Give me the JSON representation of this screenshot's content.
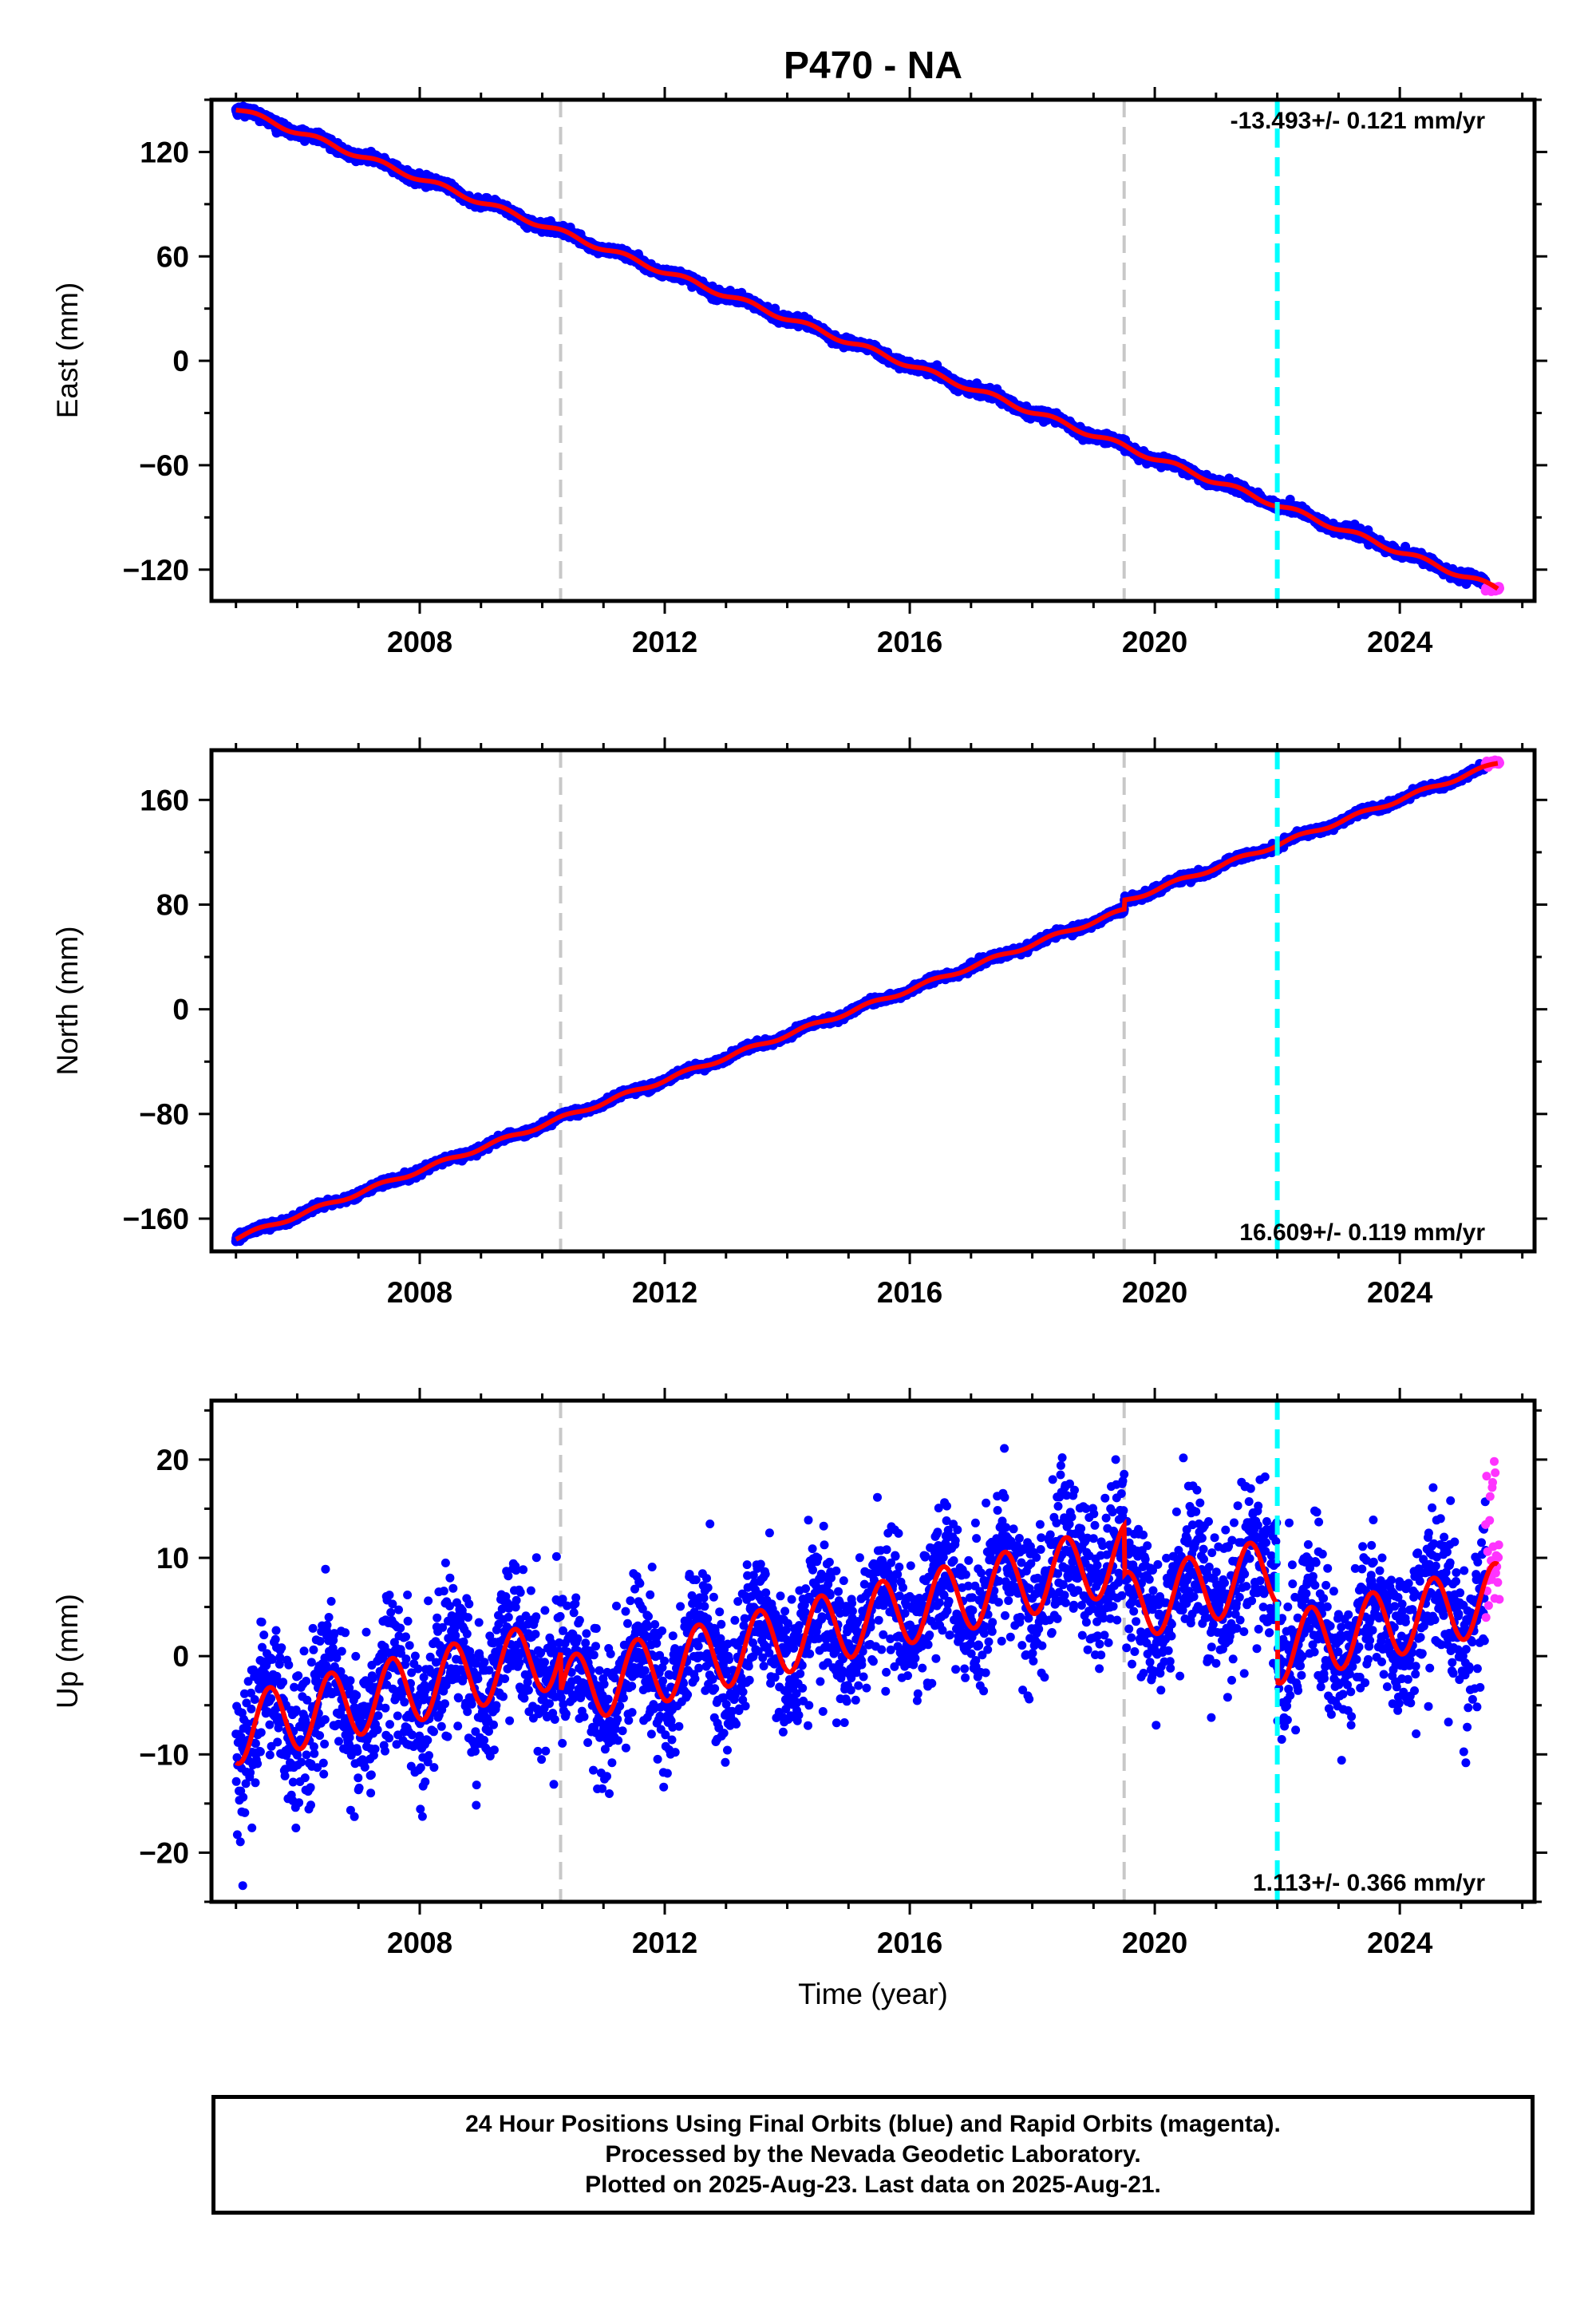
{
  "title": "P470 - NA",
  "colors": {
    "final_orbits": "#0000ff",
    "rapid_orbits": "#ff33ff",
    "model": "#ff0000",
    "equipment_change": "#c8c8c8",
    "earthquake": "#00ffff"
  },
  "footer": {
    "line1": "24 Hour Positions Using Final Orbits (blue) and Rapid Orbits (magenta).",
    "line2": "Processed by the Nevada Geodetic Laboratory.",
    "line3": "Plotted on 2025-Aug-23. Last data on 2025-Aug-21."
  },
  "chart_data": [
    {
      "type": "scatter",
      "component": "east",
      "ylabel": "East (mm)",
      "xlabel": "",
      "xlim": [
        2004.6,
        2026.2
      ],
      "ylim": [
        -138,
        150
      ],
      "xticks": [
        2008,
        2012,
        2016,
        2020,
        2024
      ],
      "yticks": [
        -120,
        -60,
        0,
        60,
        120
      ],
      "rate_label": "-13.493+/- 0.121 mm/yr",
      "rate_position": "top-right",
      "start": [
        2005.0,
        145
      ],
      "end": [
        2025.6,
        -131
      ],
      "rate_mm_per_yr": -13.493,
      "seasonal_amplitude_mm": 1.5,
      "equipment_changes": [
        2010.3,
        2019.5
      ],
      "earthquakes": [
        2022.0
      ],
      "offsets": [],
      "rapid_orbits_x": [
        2025.4,
        2025.63
      ]
    },
    {
      "type": "scatter",
      "component": "north",
      "ylabel": "North (mm)",
      "xlabel": "",
      "xlim": [
        2004.6,
        2026.2
      ],
      "ylim": [
        -185,
        198
      ],
      "xticks": [
        2008,
        2012,
        2016,
        2020,
        2024
      ],
      "yticks": [
        -160,
        -80,
        0,
        80,
        160
      ],
      "rate_label": "16.609+/- 0.119 mm/yr",
      "rate_position": "bottom-right",
      "start": [
        2005.0,
        -175
      ],
      "end": [
        2025.6,
        188
      ],
      "rate_mm_per_yr": 16.609,
      "seasonal_amplitude_mm": 1.5,
      "equipment_changes": [
        2010.3,
        2019.5
      ],
      "earthquakes": [
        2022.0
      ],
      "offsets": [
        [
          2019.5,
          7
        ]
      ],
      "rapid_orbits_x": [
        2025.4,
        2025.63
      ]
    },
    {
      "type": "scatter",
      "component": "up",
      "ylabel": "Up (mm)",
      "xlabel": "Time (year)",
      "xlim": [
        2004.6,
        2026.2
      ],
      "ylim": [
        -25,
        26
      ],
      "xticks": [
        2008,
        2012,
        2016,
        2020,
        2024
      ],
      "yticks": [
        -20,
        -10,
        0,
        10,
        20
      ],
      "rate_label": "1.113+/- 0.366 mm/yr",
      "rate_position": "bottom-right",
      "start": [
        2005.0,
        -7.5
      ],
      "end": [
        2025.6,
        6
      ],
      "rate_mm_per_yr": 1.113,
      "seasonal_amplitude_mm": 3.5,
      "equipment_changes": [
        2010.3,
        2019.5
      ],
      "earthquakes": [
        2022.0
      ],
      "offsets": [
        [
          2010.3,
          -4
        ],
        [
          2019.5,
          -5
        ],
        [
          2022.0,
          -8
        ]
      ],
      "rapid_orbits_x": [
        2025.4,
        2025.63
      ]
    }
  ]
}
